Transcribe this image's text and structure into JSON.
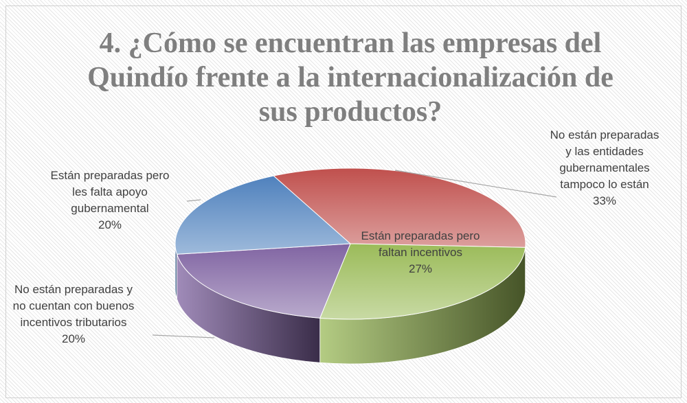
{
  "chart_data": {
    "type": "pie",
    "title": "4. ¿Cómo se encuentran las empresas del Quindío frente a la internacionalización de sus productos?",
    "categories": [
      "No están preparadas y las entidades gubernamentales tampoco lo están",
      "Están preparadas pero faltan incentivos",
      "No están preparadas y no cuentan con buenos incentivos tributarios",
      "Están preparadas pero les falta apoyo gubernamental"
    ],
    "values": [
      33,
      27,
      20,
      20
    ],
    "value_labels": [
      "33%",
      "27%",
      "20%",
      "20%"
    ],
    "colors": [
      "#c0504d",
      "#9bbb59",
      "#8064a2",
      "#4f81bd"
    ]
  }
}
